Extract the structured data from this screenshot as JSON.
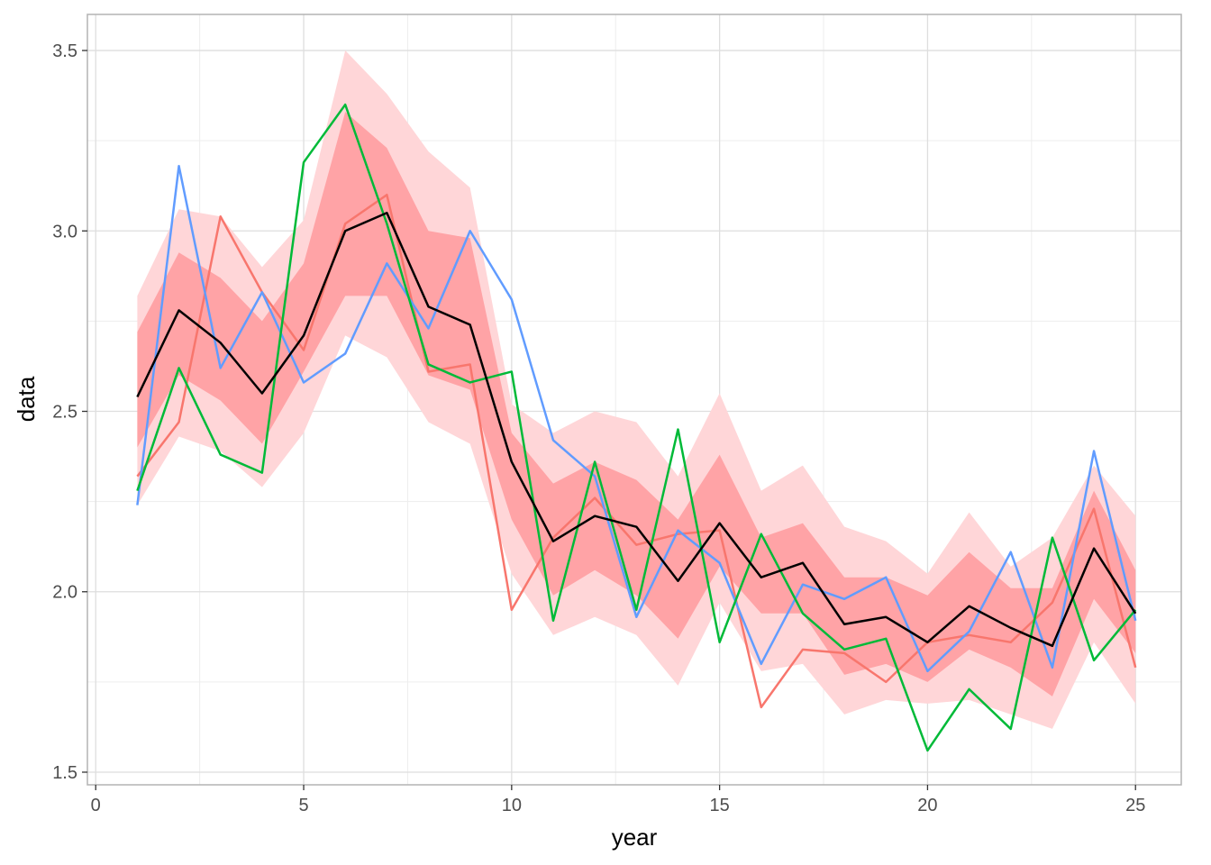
{
  "chart_data": {
    "type": "line",
    "xlabel": "year",
    "ylabel": "data",
    "xlim": [
      -0.2,
      26.1
    ],
    "ylim": [
      1.465,
      3.6
    ],
    "x_ticks": [
      0,
      5,
      10,
      15,
      20,
      25
    ],
    "x_tick_labels": [
      "0",
      "5",
      "10",
      "15",
      "20",
      "25"
    ],
    "y_ticks": [
      1.5,
      2.0,
      2.5,
      3.0,
      3.5
    ],
    "y_tick_labels": [
      "1.5",
      "2.0",
      "2.5",
      "3.0",
      "3.5"
    ],
    "x_minor_ticks": [
      2.5,
      7.5,
      12.5,
      17.5,
      22.5
    ],
    "y_minor_ticks": [
      1.75,
      2.25,
      2.75,
      3.25
    ],
    "grid": true,
    "legend": "none",
    "x": [
      1,
      2,
      3,
      4,
      5,
      6,
      7,
      8,
      9,
      10,
      11,
      12,
      13,
      14,
      15,
      16,
      17,
      18,
      19,
      20,
      21,
      22,
      23,
      24,
      25
    ],
    "bands": [
      {
        "color": "#ffd6d8",
        "lower": [
          2.24,
          2.43,
          2.39,
          2.29,
          2.44,
          2.71,
          2.65,
          2.47,
          2.41,
          2.05,
          1.88,
          1.93,
          1.88,
          1.74,
          1.97,
          1.78,
          1.8,
          1.66,
          1.7,
          1.69,
          1.7,
          1.66,
          1.62,
          1.86,
          1.69
        ],
        "upper": [
          2.82,
          3.06,
          3.04,
          2.9,
          3.03,
          3.5,
          3.38,
          3.22,
          3.12,
          2.52,
          2.44,
          2.5,
          2.47,
          2.32,
          2.55,
          2.28,
          2.35,
          2.18,
          2.14,
          2.05,
          2.22,
          2.07,
          2.15,
          2.35,
          2.21
        ]
      },
      {
        "color": "#ffa3a6",
        "lower": [
          2.4,
          2.6,
          2.53,
          2.41,
          2.61,
          2.82,
          2.82,
          2.6,
          2.56,
          2.2,
          1.99,
          2.06,
          1.99,
          1.87,
          2.07,
          1.94,
          1.94,
          1.77,
          1.8,
          1.75,
          1.84,
          1.79,
          1.71,
          1.98,
          1.83
        ],
        "upper": [
          2.72,
          2.94,
          2.87,
          2.75,
          2.91,
          3.33,
          3.23,
          3.0,
          2.98,
          2.44,
          2.3,
          2.36,
          2.31,
          2.2,
          2.38,
          2.15,
          2.19,
          2.04,
          2.04,
          1.99,
          2.11,
          2.01,
          2.01,
          2.28,
          2.06
        ]
      }
    ],
    "series": [
      {
        "color": "#f8766d",
        "values": [
          2.32,
          2.47,
          3.04,
          2.83,
          2.67,
          3.02,
          3.1,
          2.61,
          2.63,
          1.95,
          2.15,
          2.26,
          2.13,
          2.16,
          2.17,
          1.68,
          1.84,
          1.83,
          1.75,
          1.86,
          1.88,
          1.86,
          1.97,
          2.23,
          1.79
        ]
      },
      {
        "color": "#619cff",
        "values": [
          2.24,
          3.18,
          2.62,
          2.83,
          2.58,
          2.66,
          2.91,
          2.73,
          3.0,
          2.81,
          2.42,
          2.32,
          1.93,
          2.17,
          2.08,
          1.8,
          2.02,
          1.98,
          2.04,
          1.78,
          1.89,
          2.11,
          1.79,
          2.39,
          1.92
        ]
      },
      {
        "color": "#00ba38",
        "values": [
          2.28,
          2.62,
          2.38,
          2.33,
          3.19,
          3.35,
          3.02,
          2.63,
          2.58,
          2.61,
          1.92,
          2.36,
          1.95,
          2.45,
          1.86,
          2.16,
          1.94,
          1.84,
          1.87,
          1.56,
          1.73,
          1.62,
          2.15,
          1.81,
          1.95
        ]
      },
      {
        "color": "#000000",
        "values": [
          2.54,
          2.78,
          2.69,
          2.55,
          2.71,
          3.0,
          3.05,
          2.79,
          2.74,
          2.36,
          2.14,
          2.21,
          2.18,
          2.03,
          2.19,
          2.04,
          2.08,
          1.91,
          1.93,
          1.86,
          1.96,
          1.9,
          1.85,
          2.12,
          1.94
        ]
      }
    ]
  }
}
